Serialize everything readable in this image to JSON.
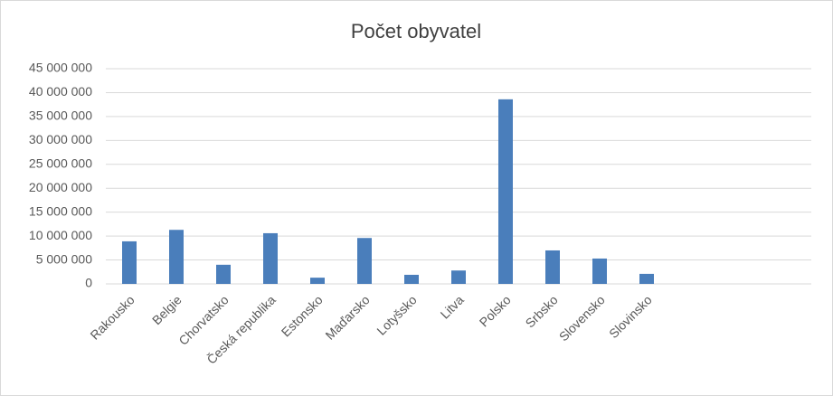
{
  "chart_data": {
    "type": "bar",
    "title": "Počet obyvatel",
    "categories": [
      "Rakousko",
      "Belgie",
      "Chorvatsko",
      "Česká republika",
      "Estonsko",
      "Maďarsko",
      "Lotyšsko",
      "Litva",
      "Polsko",
      "Srbsko",
      "Slovensko",
      "Slovinsko",
      null,
      null,
      null
    ],
    "values": [
      8900000,
      11300000,
      4000000,
      10600000,
      1300000,
      9600000,
      1900000,
      2800000,
      38600000,
      7000000,
      5300000,
      2100000,
      null,
      null,
      null
    ],
    "color": "#4a7ebb",
    "ylim": [
      0,
      45000000
    ],
    "yticks": [
      0,
      {
        "value": 5000000,
        "label": "5 000 000"
      },
      {
        "value": 10000000,
        "label": "10 000 000"
      },
      {
        "value": 15000000,
        "label": "15 000 000"
      },
      {
        "value": 20000000,
        "label": "20 000 000"
      },
      {
        "value": 25000000,
        "label": "25 000 000"
      },
      {
        "value": 30000000,
        "label": "30 000 000"
      },
      {
        "value": 35000000,
        "label": "35 000 000"
      },
      {
        "value": 40000000,
        "label": "40 000 000"
      },
      {
        "value": 45000000,
        "label": "45 000 000"
      }
    ],
    "grid": true
  }
}
